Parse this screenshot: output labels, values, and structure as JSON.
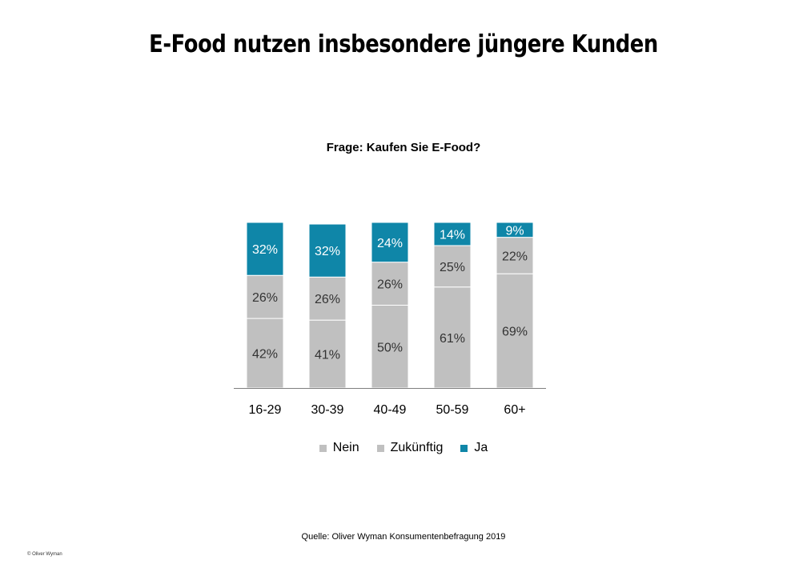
{
  "title": "E-Food nutzen insbesondere jüngere Kunden",
  "source": "Quelle: Oliver Wyman Konsumentenbefragung  2019",
  "copyright": "© Oliver Wyman",
  "colors": {
    "nein": "#c0c0c0",
    "zukuenftig": "#c0c0c0",
    "ja": "#0f86a8"
  },
  "chart_data": {
    "type": "bar",
    "stacked": true,
    "title": "Frage: Kaufen Sie E-Food?",
    "xlabel": "",
    "ylabel": "",
    "ylim": [
      0,
      100
    ],
    "grid": false,
    "legend_position": "bottom",
    "categories": [
      "16-29",
      "30-39",
      "40-49",
      "50-59",
      "60+"
    ],
    "series": [
      {
        "name": "Nein",
        "values": [
          42,
          41,
          50,
          61,
          69
        ],
        "labels": [
          "42%",
          "41%",
          "50%",
          "61%",
          "69%"
        ]
      },
      {
        "name": "Zukünftig",
        "values": [
          26,
          26,
          26,
          25,
          22
        ],
        "labels": [
          "26%",
          "26%",
          "26%",
          "25%",
          "22%"
        ]
      },
      {
        "name": "Ja",
        "values": [
          32,
          32,
          24,
          14,
          9
        ],
        "labels": [
          "32%",
          "32%",
          "24%",
          "14%",
          "9%"
        ]
      }
    ]
  }
}
